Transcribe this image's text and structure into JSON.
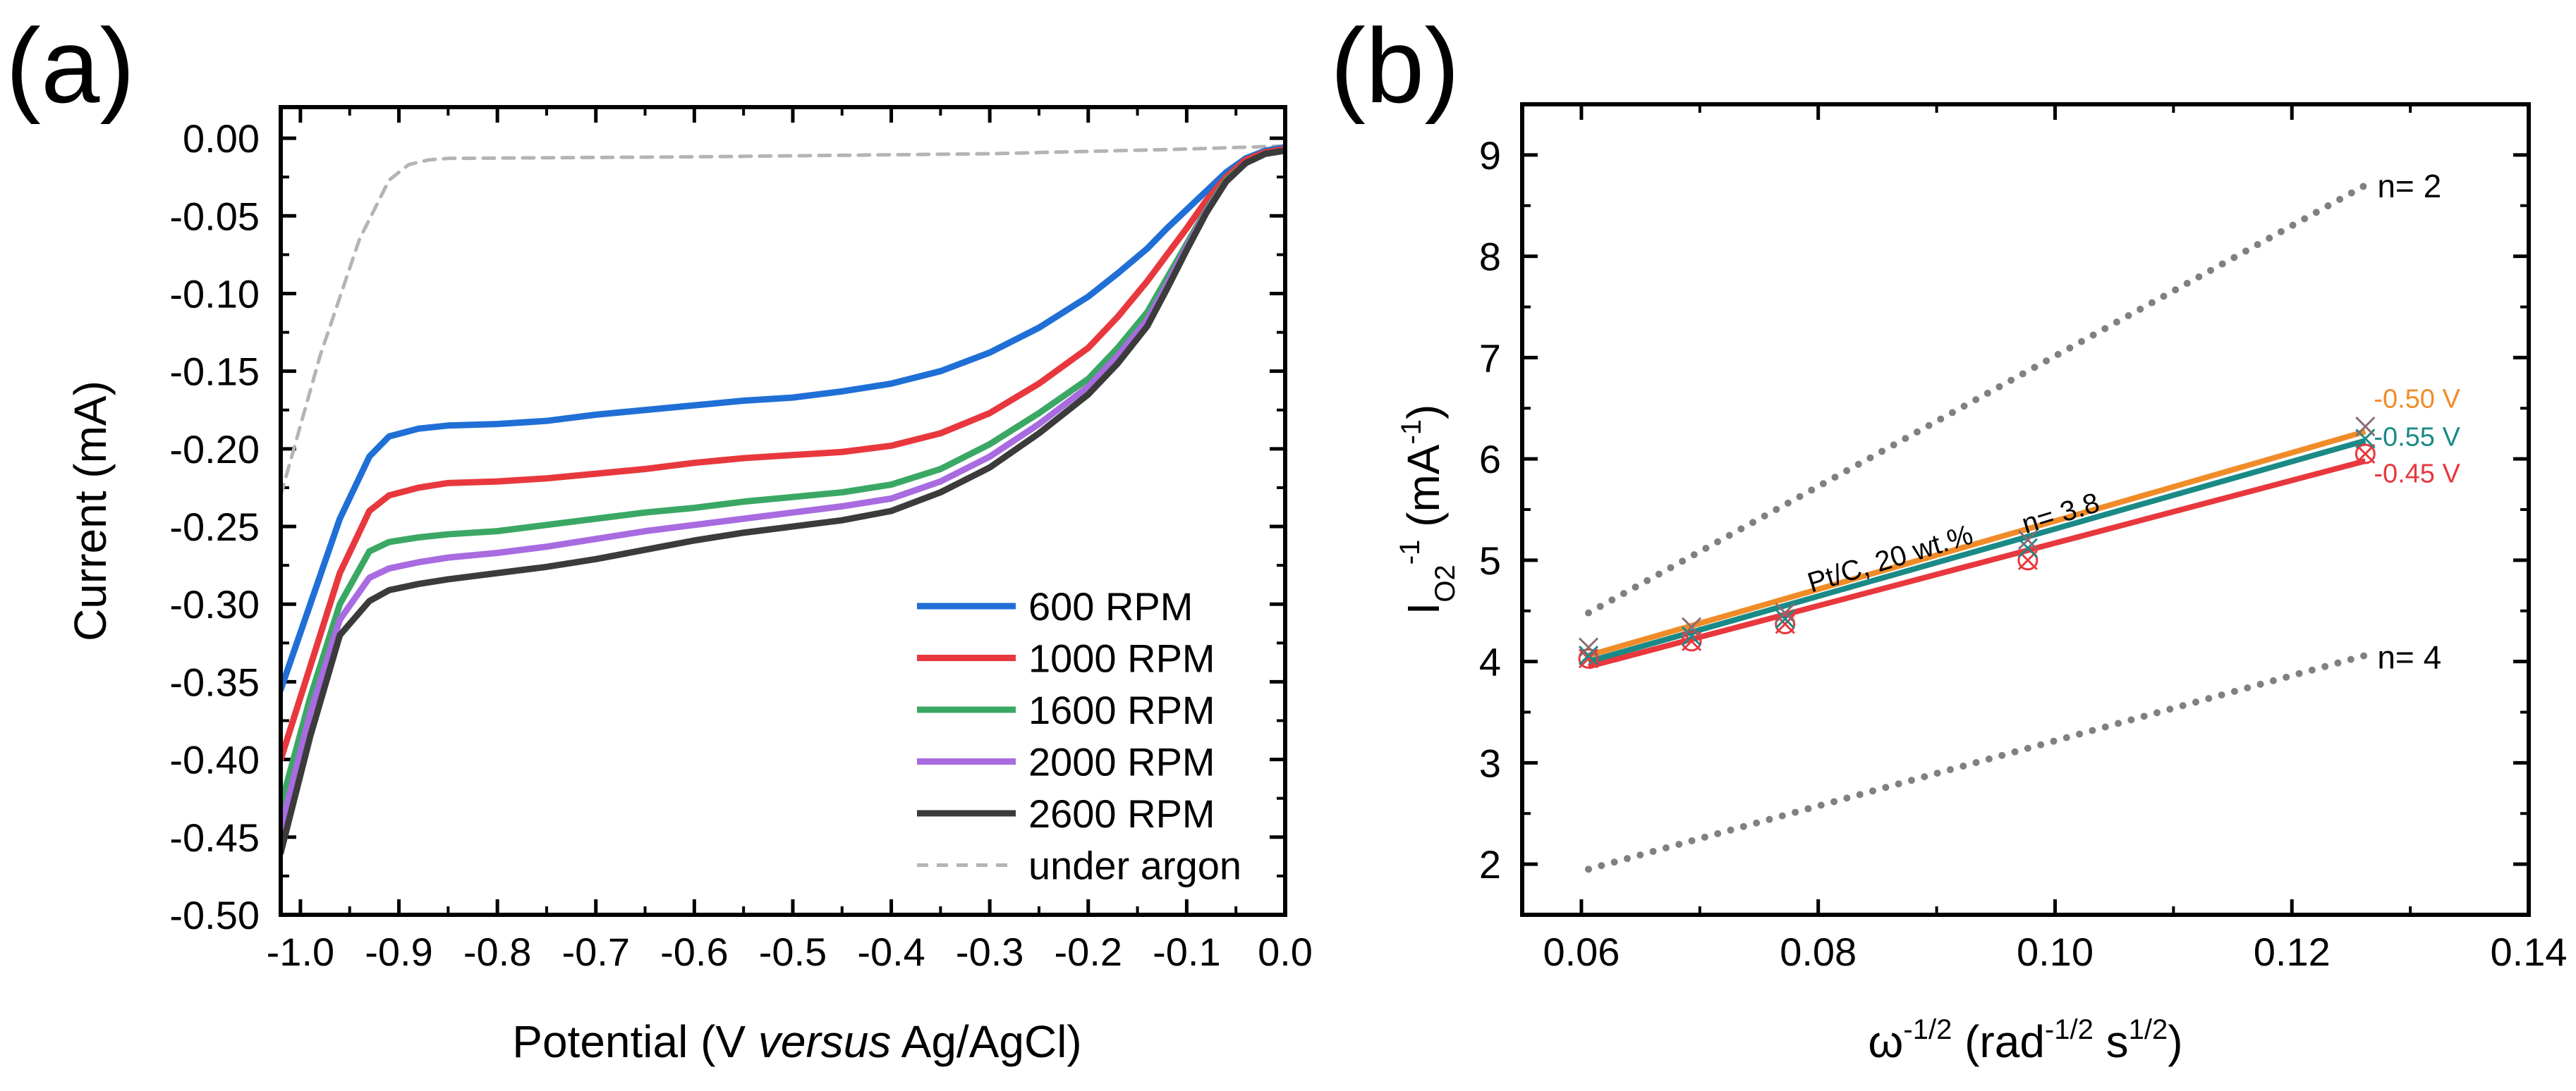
{
  "panel_labels": [
    "(a)",
    "(b)"
  ],
  "chart_data": [
    {
      "type": "line",
      "panel": "(a)",
      "title": "",
      "xlabel": {
        "pre": "Potential (V ",
        "italic": "versus",
        "post": " Ag/AgCl)"
      },
      "ylabel": "Current (mA)",
      "xlim": [
        -1.02,
        0.0
      ],
      "ylim": [
        -0.5,
        0.02
      ],
      "xticks": [
        -1.0,
        -0.9,
        -0.8,
        -0.7,
        -0.6,
        -0.5,
        -0.4,
        -0.3,
        -0.2,
        -0.1,
        0.0
      ],
      "xtick_labels": [
        "-1.0",
        "-0.9",
        "-0.8",
        "-0.7",
        "-0.6",
        "-0.5",
        "-0.4",
        "-0.3",
        "-0.2",
        "-0.1",
        "0.0"
      ],
      "yticks": [
        0.0,
        -0.05,
        -0.1,
        -0.15,
        -0.2,
        -0.25,
        -0.3,
        -0.35,
        -0.4,
        -0.45,
        -0.5
      ],
      "ytick_labels": [
        "0.00",
        "-0.05",
        "-0.10",
        "-0.15",
        "-0.20",
        "-0.25",
        "-0.30",
        "-0.35",
        "-0.40",
        "-0.45",
        "-0.50"
      ],
      "legend_position": "bottom-right",
      "series": [
        {
          "name": "600 RPM",
          "color": "#1f6fd6",
          "style": "solid",
          "x": [
            -1.02,
            -0.99,
            -0.96,
            -0.93,
            -0.91,
            -0.88,
            -0.85,
            -0.8,
            -0.75,
            -0.7,
            -0.65,
            -0.6,
            -0.55,
            -0.5,
            -0.45,
            -0.4,
            -0.35,
            -0.3,
            -0.25,
            -0.2,
            -0.17,
            -0.14,
            -0.12,
            -0.1,
            -0.08,
            -0.06,
            -0.04,
            -0.02,
            0.0
          ],
          "y": [
            -0.355,
            -0.3,
            -0.245,
            -0.205,
            -0.192,
            -0.187,
            -0.185,
            -0.184,
            -0.182,
            -0.178,
            -0.175,
            -0.172,
            -0.169,
            -0.167,
            -0.163,
            -0.158,
            -0.15,
            -0.138,
            -0.122,
            -0.102,
            -0.087,
            -0.071,
            -0.058,
            -0.046,
            -0.034,
            -0.022,
            -0.013,
            -0.008,
            -0.006
          ]
        },
        {
          "name": "1000 RPM",
          "color": "#e8383d",
          "style": "solid",
          "x": [
            -1.02,
            -0.99,
            -0.96,
            -0.93,
            -0.91,
            -0.88,
            -0.85,
            -0.8,
            -0.75,
            -0.7,
            -0.65,
            -0.6,
            -0.55,
            -0.5,
            -0.45,
            -0.4,
            -0.35,
            -0.3,
            -0.25,
            -0.2,
            -0.17,
            -0.14,
            -0.12,
            -0.1,
            -0.08,
            -0.06,
            -0.04,
            -0.02,
            0.0
          ],
          "y": [
            -0.4,
            -0.34,
            -0.28,
            -0.24,
            -0.23,
            -0.225,
            -0.222,
            -0.221,
            -0.219,
            -0.216,
            -0.213,
            -0.209,
            -0.206,
            -0.204,
            -0.202,
            -0.198,
            -0.19,
            -0.177,
            -0.158,
            -0.135,
            -0.115,
            -0.092,
            -0.075,
            -0.058,
            -0.04,
            -0.025,
            -0.014,
            -0.009,
            -0.007
          ]
        },
        {
          "name": "1600 RPM",
          "color": "#3aa864",
          "style": "solid",
          "x": [
            -1.02,
            -0.99,
            -0.96,
            -0.93,
            -0.91,
            -0.88,
            -0.85,
            -0.8,
            -0.75,
            -0.7,
            -0.65,
            -0.6,
            -0.55,
            -0.5,
            -0.45,
            -0.4,
            -0.35,
            -0.3,
            -0.25,
            -0.2,
            -0.17,
            -0.14,
            -0.12,
            -0.1,
            -0.08,
            -0.06,
            -0.04,
            -0.02,
            0.0
          ],
          "y": [
            -0.43,
            -0.36,
            -0.3,
            -0.266,
            -0.26,
            -0.257,
            -0.255,
            -0.253,
            -0.249,
            -0.245,
            -0.241,
            -0.238,
            -0.234,
            -0.231,
            -0.228,
            -0.223,
            -0.213,
            -0.197,
            -0.177,
            -0.155,
            -0.135,
            -0.112,
            -0.09,
            -0.068,
            -0.046,
            -0.027,
            -0.016,
            -0.01,
            -0.008
          ]
        },
        {
          "name": "2000 RPM",
          "color": "#a86be0",
          "style": "solid",
          "x": [
            -1.02,
            -0.99,
            -0.96,
            -0.93,
            -0.91,
            -0.88,
            -0.85,
            -0.8,
            -0.75,
            -0.7,
            -0.65,
            -0.6,
            -0.55,
            -0.5,
            -0.45,
            -0.4,
            -0.35,
            -0.3,
            -0.25,
            -0.2,
            -0.17,
            -0.14,
            -0.12,
            -0.1,
            -0.08,
            -0.06,
            -0.04,
            -0.02,
            0.0
          ],
          "y": [
            -0.445,
            -0.37,
            -0.31,
            -0.283,
            -0.277,
            -0.273,
            -0.27,
            -0.267,
            -0.263,
            -0.258,
            -0.253,
            -0.249,
            -0.245,
            -0.241,
            -0.237,
            -0.232,
            -0.221,
            -0.205,
            -0.184,
            -0.16,
            -0.14,
            -0.117,
            -0.094,
            -0.07,
            -0.047,
            -0.028,
            -0.016,
            -0.01,
            -0.008
          ]
        },
        {
          "name": "2600 RPM",
          "color": "#3b3b3b",
          "style": "solid",
          "x": [
            -1.02,
            -0.99,
            -0.96,
            -0.93,
            -0.91,
            -0.88,
            -0.85,
            -0.8,
            -0.75,
            -0.7,
            -0.65,
            -0.6,
            -0.55,
            -0.5,
            -0.45,
            -0.4,
            -0.35,
            -0.3,
            -0.25,
            -0.2,
            -0.17,
            -0.14,
            -0.12,
            -0.1,
            -0.08,
            -0.06,
            -0.04,
            -0.02,
            0.0
          ],
          "y": [
            -0.46,
            -0.385,
            -0.32,
            -0.298,
            -0.291,
            -0.287,
            -0.284,
            -0.28,
            -0.276,
            -0.271,
            -0.265,
            -0.259,
            -0.254,
            -0.25,
            -0.246,
            -0.24,
            -0.228,
            -0.212,
            -0.19,
            -0.165,
            -0.145,
            -0.121,
            -0.097,
            -0.072,
            -0.048,
            -0.028,
            -0.016,
            -0.01,
            -0.008
          ]
        },
        {
          "name": "under argon",
          "color": "#b4b4b4",
          "style": "dashed",
          "x": [
            -1.02,
            -0.98,
            -0.94,
            -0.91,
            -0.89,
            -0.87,
            -0.85,
            -0.6,
            -0.3,
            -0.1,
            0.0
          ],
          "y": [
            -0.23,
            -0.14,
            -0.065,
            -0.027,
            -0.017,
            -0.014,
            -0.013,
            -0.012,
            -0.01,
            -0.007,
            -0.005
          ]
        }
      ]
    },
    {
      "type": "scatter",
      "panel": "(b)",
      "title": "",
      "xlabel": "ω-1/2 (rad-1/2 s1/2)",
      "ylabel": "IO2-1 (mA-1)",
      "xlim": [
        0.055,
        0.14
      ],
      "ylim": [
        1.5,
        9.5
      ],
      "xticks": [
        0.06,
        0.08,
        0.1,
        0.12,
        0.14
      ],
      "xtick_labels": [
        "0.06",
        "0.08",
        "0.10",
        "0.12",
        "0.14"
      ],
      "yticks": [
        2,
        3,
        4,
        5,
        6,
        7,
        8,
        9
      ],
      "ytick_labels": [
        "2",
        "3",
        "4",
        "5",
        "6",
        "7",
        "8",
        "9"
      ],
      "data_x": [
        0.0606,
        0.0693,
        0.0772,
        0.0977,
        0.1262
      ],
      "series": [
        {
          "name": "-0.50 V",
          "color": "#f08c28",
          "marker": "x",
          "y": [
            4.14,
            4.34,
            4.48,
            5.2,
            6.32
          ],
          "fit": [
            [
              0.0606,
              4.06
            ],
            [
              0.1262,
              6.27
            ]
          ]
        },
        {
          "name": "-0.55 V",
          "color": "#1a8a86",
          "marker": "x",
          "y": [
            4.06,
            4.25,
            4.42,
            5.12,
            6.2
          ],
          "fit": [
            [
              0.0606,
              4.0
            ],
            [
              0.1262,
              6.18
            ]
          ]
        },
        {
          "name": "-0.45 V",
          "color": "#e8383d",
          "marker": "circle-x",
          "y": [
            4.03,
            4.2,
            4.37,
            5.0,
            6.05
          ],
          "fit": [
            [
              0.0606,
              3.95
            ],
            [
              0.1262,
              5.98
            ]
          ]
        }
      ],
      "reference_lines": [
        {
          "label": "n= 2",
          "color": "#808080",
          "style": "dotted",
          "points": [
            [
              0.0606,
              4.48
            ],
            [
              0.1265,
              8.72
            ]
          ]
        },
        {
          "label": "n= 4",
          "color": "#808080",
          "style": "dotted",
          "points": [
            [
              0.0606,
              1.95
            ],
            [
              0.1265,
              4.07
            ]
          ]
        }
      ],
      "annotations": [
        {
          "text": "n= 3.8",
          "x": 0.0975,
          "y": 5.26
        },
        {
          "text": "Pt/C, 20 wt.%",
          "x": 0.08,
          "y": 4.68
        }
      ]
    }
  ]
}
